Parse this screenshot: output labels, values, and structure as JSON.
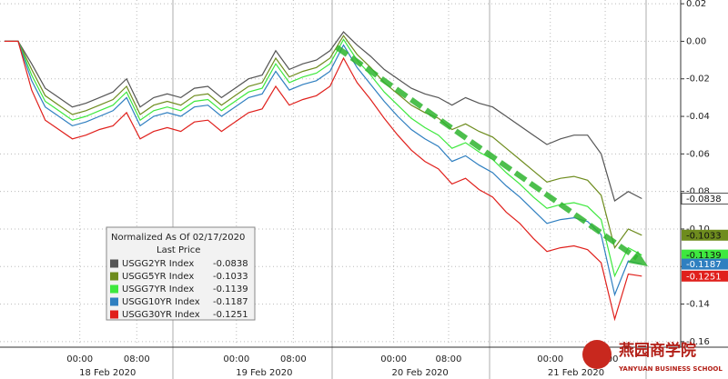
{
  "chart_data": {
    "type": "line",
    "x": [
      0,
      2,
      4,
      6,
      8,
      10,
      12,
      14,
      16,
      18,
      20,
      22,
      24,
      26,
      28,
      30,
      32,
      34,
      36,
      38,
      40,
      42,
      44,
      46,
      48,
      50,
      52,
      54,
      56,
      58,
      60,
      62,
      64,
      66,
      68,
      70,
      72,
      74,
      76,
      78,
      80,
      82,
      84,
      86,
      88,
      90,
      92,
      94
    ],
    "xlim": [
      0,
      100
    ],
    "xticks": [
      {
        "value": 11.1,
        "label": "00:00"
      },
      {
        "value": 19.5,
        "label": "08:00"
      },
      {
        "value": 34.2,
        "label": "00:00"
      },
      {
        "value": 42.6,
        "label": "08:00"
      },
      {
        "value": 57.4,
        "label": "00:00"
      },
      {
        "value": 65.5,
        "label": "08:00"
      },
      {
        "value": 80.5,
        "label": "00:00"
      },
      {
        "value": 88.6,
        "label": "08:00"
      }
    ],
    "x_group_labels": [
      {
        "value": 15.2,
        "label": "18 Feb 2020"
      },
      {
        "value": 38.3,
        "label": "19 Feb 2020"
      },
      {
        "value": 61.3,
        "label": "20 Feb 2020"
      },
      {
        "value": 84.3,
        "label": "21 Feb 2020"
      }
    ],
    "ylim": [
      -0.162,
      0.022
    ],
    "yticks": [
      0.02,
      {
        "value": 0,
        "label": "0.00"
      },
      -0.02,
      -0.04,
      -0.06,
      -0.08,
      {
        "value": -0.1,
        "label": "-0.10"
      },
      -0.12,
      -0.14,
      -0.16
    ],
    "grid": true,
    "legend": {
      "title": "Normalized As Of 02/17/2020",
      "subtitle": "Last Price",
      "position": "lower-left"
    },
    "series": [
      {
        "name": "USGG2YR Index",
        "color": "#555555",
        "values": [
          0,
          0,
          -0.012,
          -0.025,
          -0.03,
          -0.035,
          -0.033,
          -0.03,
          -0.027,
          -0.02,
          -0.035,
          -0.03,
          -0.028,
          -0.03,
          -0.025,
          -0.024,
          -0.03,
          -0.025,
          -0.02,
          -0.018,
          -0.005,
          -0.015,
          -0.012,
          -0.01,
          -0.005,
          0.005,
          -0.002,
          -0.008,
          -0.015,
          -0.02,
          -0.025,
          -0.028,
          -0.03,
          -0.034,
          -0.03,
          -0.033,
          -0.035,
          -0.04,
          -0.045,
          -0.05,
          -0.055,
          -0.052,
          -0.05,
          -0.05,
          -0.06,
          -0.085,
          -0.08,
          -0.0838
        ]
      },
      {
        "name": "USGG5YR Index",
        "color": "#6e8c1e",
        "values": [
          0,
          0,
          -0.015,
          -0.029,
          -0.034,
          -0.039,
          -0.037,
          -0.034,
          -0.031,
          -0.024,
          -0.039,
          -0.034,
          -0.032,
          -0.034,
          -0.029,
          -0.028,
          -0.034,
          -0.029,
          -0.024,
          -0.022,
          -0.009,
          -0.019,
          -0.016,
          -0.014,
          -0.009,
          0.003,
          -0.007,
          -0.014,
          -0.022,
          -0.028,
          -0.034,
          -0.038,
          -0.041,
          -0.047,
          -0.044,
          -0.048,
          -0.051,
          -0.057,
          -0.063,
          -0.069,
          -0.075,
          -0.073,
          -0.072,
          -0.074,
          -0.082,
          -0.11,
          -0.1,
          -0.1033
        ]
      },
      {
        "name": "USGG7YR Index",
        "color": "#3ee83e",
        "values": [
          0,
          0,
          -0.018,
          -0.032,
          -0.037,
          -0.042,
          -0.04,
          -0.037,
          -0.034,
          -0.027,
          -0.042,
          -0.037,
          -0.035,
          -0.037,
          -0.032,
          -0.031,
          -0.037,
          -0.032,
          -0.027,
          -0.025,
          -0.012,
          -0.022,
          -0.019,
          -0.017,
          -0.012,
          0.001,
          -0.01,
          -0.018,
          -0.027,
          -0.034,
          -0.041,
          -0.046,
          -0.05,
          -0.057,
          -0.054,
          -0.059,
          -0.063,
          -0.07,
          -0.076,
          -0.083,
          -0.089,
          -0.087,
          -0.086,
          -0.088,
          -0.095,
          -0.125,
          -0.11,
          -0.1139
        ]
      },
      {
        "name": "USGG10YR Index",
        "color": "#2f7fc0",
        "values": [
          0,
          0,
          -0.021,
          -0.035,
          -0.04,
          -0.045,
          -0.043,
          -0.04,
          -0.037,
          -0.03,
          -0.045,
          -0.04,
          -0.038,
          -0.04,
          -0.035,
          -0.034,
          -0.04,
          -0.035,
          -0.03,
          -0.028,
          -0.016,
          -0.026,
          -0.023,
          -0.021,
          -0.016,
          -0.002,
          -0.014,
          -0.023,
          -0.032,
          -0.04,
          -0.047,
          -0.052,
          -0.056,
          -0.064,
          -0.061,
          -0.066,
          -0.07,
          -0.077,
          -0.083,
          -0.09,
          -0.097,
          -0.095,
          -0.094,
          -0.096,
          -0.103,
          -0.135,
          -0.117,
          -0.1187
        ]
      },
      {
        "name": "USGG30YR Index",
        "color": "#e0201c",
        "values": [
          0,
          0,
          -0.026,
          -0.042,
          -0.047,
          -0.052,
          -0.05,
          -0.047,
          -0.045,
          -0.038,
          -0.052,
          -0.048,
          -0.046,
          -0.048,
          -0.043,
          -0.042,
          -0.048,
          -0.043,
          -0.038,
          -0.036,
          -0.024,
          -0.034,
          -0.031,
          -0.029,
          -0.024,
          -0.009,
          -0.022,
          -0.031,
          -0.041,
          -0.05,
          -0.058,
          -0.064,
          -0.068,
          -0.076,
          -0.073,
          -0.079,
          -0.083,
          -0.091,
          -0.097,
          -0.105,
          -0.112,
          -0.11,
          -0.109,
          -0.111,
          -0.118,
          -0.148,
          -0.124,
          -0.1251
        ]
      }
    ],
    "watermark": {
      "title": "燕园商学院",
      "subtitle": "YANYUAN BUSINESS SCHOOL"
    }
  }
}
